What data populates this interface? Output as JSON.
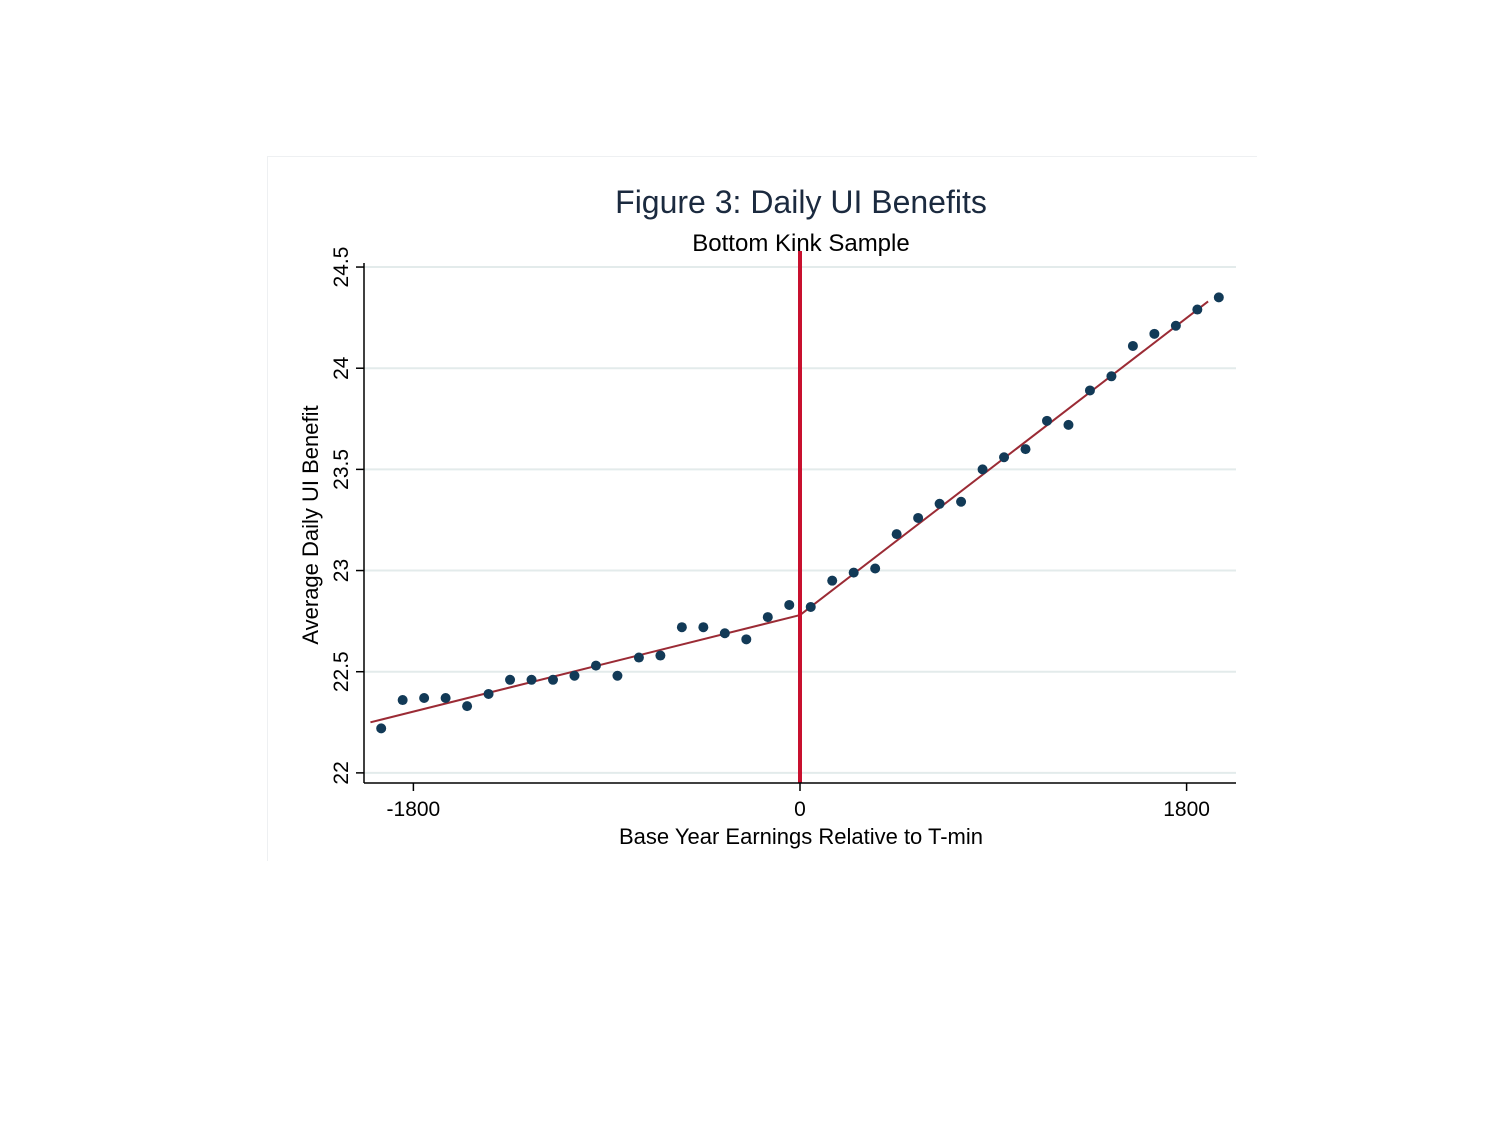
{
  "chart_data": {
    "type": "scatter",
    "title": "Figure 3: Daily UI Benefits",
    "subtitle": "Bottom Kink Sample",
    "xlabel": "Base Year Earnings Relative to  T-min",
    "ylabel": "Average Daily UI Benefit",
    "xlim": [
      -2030,
      2030
    ],
    "ylim": [
      21.95,
      24.52
    ],
    "xticks": [
      -1800,
      0,
      1800
    ],
    "xtick_labels": [
      "-1800",
      "0",
      "1800"
    ],
    "yticks": [
      22,
      22.5,
      23,
      23.5,
      24,
      24.5
    ],
    "ytick_labels": [
      "22",
      "22.5",
      "23",
      "23.5",
      "24",
      "24.5"
    ],
    "grid": "horizontal",
    "series": [
      {
        "kind": "binned-means",
        "x": [
          -1950,
          -1850,
          -1750,
          -1650,
          -1550,
          -1450,
          -1350,
          -1250,
          -1150,
          -1050,
          -950,
          -850,
          -750,
          -650,
          -550,
          -450,
          -350,
          -250,
          -150,
          -50,
          50,
          150,
          250,
          350,
          450,
          550,
          650,
          750,
          850,
          950,
          1050,
          1150,
          1250,
          1350,
          1450,
          1550,
          1650,
          1750,
          1850,
          1950
        ],
        "y": [
          22.22,
          22.36,
          22.37,
          22.37,
          22.33,
          22.39,
          22.46,
          22.46,
          22.46,
          22.48,
          22.53,
          22.48,
          22.57,
          22.58,
          22.72,
          22.72,
          22.69,
          22.66,
          22.77,
          22.83,
          22.82,
          22.95,
          22.99,
          23.01,
          23.18,
          23.26,
          23.33,
          23.34,
          23.5,
          23.56,
          23.6,
          23.74,
          23.72,
          23.89,
          23.96,
          24.11,
          24.17,
          24.21,
          24.29,
          24.35
        ]
      },
      {
        "kind": "fit-left",
        "x": [
          -2000,
          0
        ],
        "y": [
          22.25,
          22.78
        ]
      },
      {
        "kind": "fit-right",
        "x": [
          0,
          1900
        ],
        "y": [
          22.78,
          24.33
        ]
      }
    ],
    "threshold_x": 0,
    "colors": {
      "points": "#123a57",
      "fit": "#9b2b35",
      "threshold": "#c8102e",
      "grid": "#e3ebeb",
      "axis": "#000000"
    }
  }
}
